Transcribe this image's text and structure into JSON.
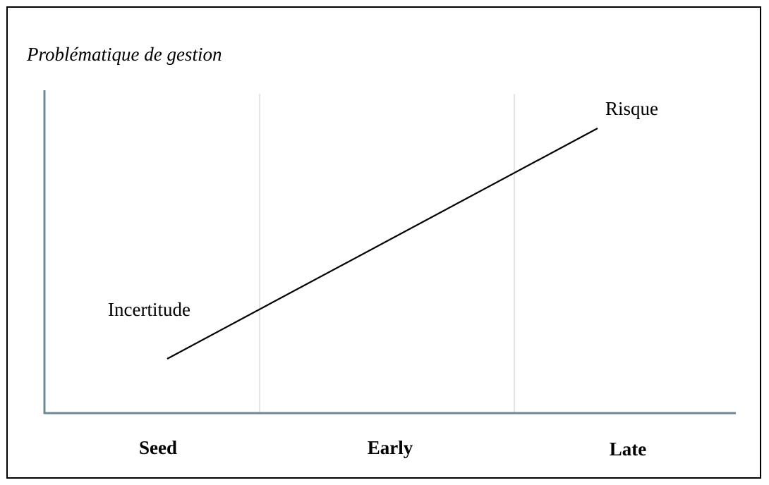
{
  "title": "Problématique de gestion",
  "curve_labels": {
    "start": "Incertitude",
    "end": "Risque"
  },
  "stages": [
    "Seed",
    "Early",
    "Late"
  ]
}
